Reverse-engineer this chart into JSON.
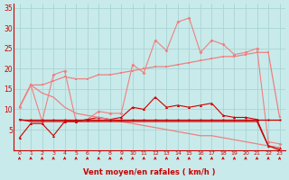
{
  "x": [
    0,
    1,
    2,
    3,
    4,
    5,
    6,
    7,
    8,
    9,
    10,
    11,
    12,
    13,
    14,
    15,
    16,
    17,
    18,
    19,
    20,
    21,
    22,
    23
  ],
  "rafales_spiky": [
    10.5,
    16,
    7,
    18.5,
    19.5,
    7,
    7.5,
    9.5,
    9,
    9,
    21,
    19,
    27,
    24.5,
    31.5,
    32.5,
    24,
    27,
    26,
    23.5,
    24,
    25,
    2,
    1.5
  ],
  "moyen_spiky": [
    3,
    6.5,
    6.5,
    3.5,
    7,
    7,
    7.5,
    8,
    7.5,
    8,
    10.5,
    10,
    13,
    10.5,
    11,
    10.5,
    11,
    11.5,
    8.5,
    8,
    8,
    7.5,
    1,
    0.5
  ],
  "trend_up": [
    10.5,
    16,
    16,
    17,
    18,
    17.5,
    17.5,
    18.5,
    18.5,
    19,
    19.5,
    20,
    20.5,
    20.5,
    21,
    21.5,
    22,
    22.5,
    23,
    23,
    23.5,
    24,
    24,
    8
  ],
  "trend_down": [
    10.5,
    16,
    14,
    13,
    10.5,
    9,
    8.5,
    8,
    7.5,
    7,
    6.5,
    6,
    5.5,
    5,
    4.5,
    4,
    3.5,
    3.5,
    3,
    2.5,
    2,
    1.5,
    1,
    0.5
  ],
  "flat_upper": [
    7.5,
    7.5,
    7.5,
    7.5,
    7.5,
    7.5,
    7.5,
    7.5,
    7.5,
    7.5,
    7.5,
    7.5,
    7.5,
    7.5,
    7.5,
    7.5,
    7.5,
    7.5,
    7.5,
    7.5,
    7.5,
    7.5,
    7.5,
    7.5
  ],
  "flat_lower": [
    7.5,
    7,
    7,
    7,
    7,
    7,
    7,
    7,
    7,
    7,
    7,
    7,
    7,
    7,
    7,
    7,
    7,
    7,
    7,
    7,
    7,
    7,
    1,
    0
  ],
  "color_light": "#f08080",
  "color_dark": "#cc0000",
  "bg_color": "#c8eaea",
  "grid_color": "#aad4d4",
  "xlabel": "Vent moyen/en rafales ( km/h )",
  "ylim": [
    0,
    36
  ],
  "xlim": [
    -0.5,
    23.5
  ],
  "ytick_vals": [
    5,
    10,
    15,
    20,
    25,
    30,
    35
  ],
  "ytick_labels": [
    "5",
    "10",
    "15",
    "20",
    "25",
    "30",
    "35"
  ]
}
